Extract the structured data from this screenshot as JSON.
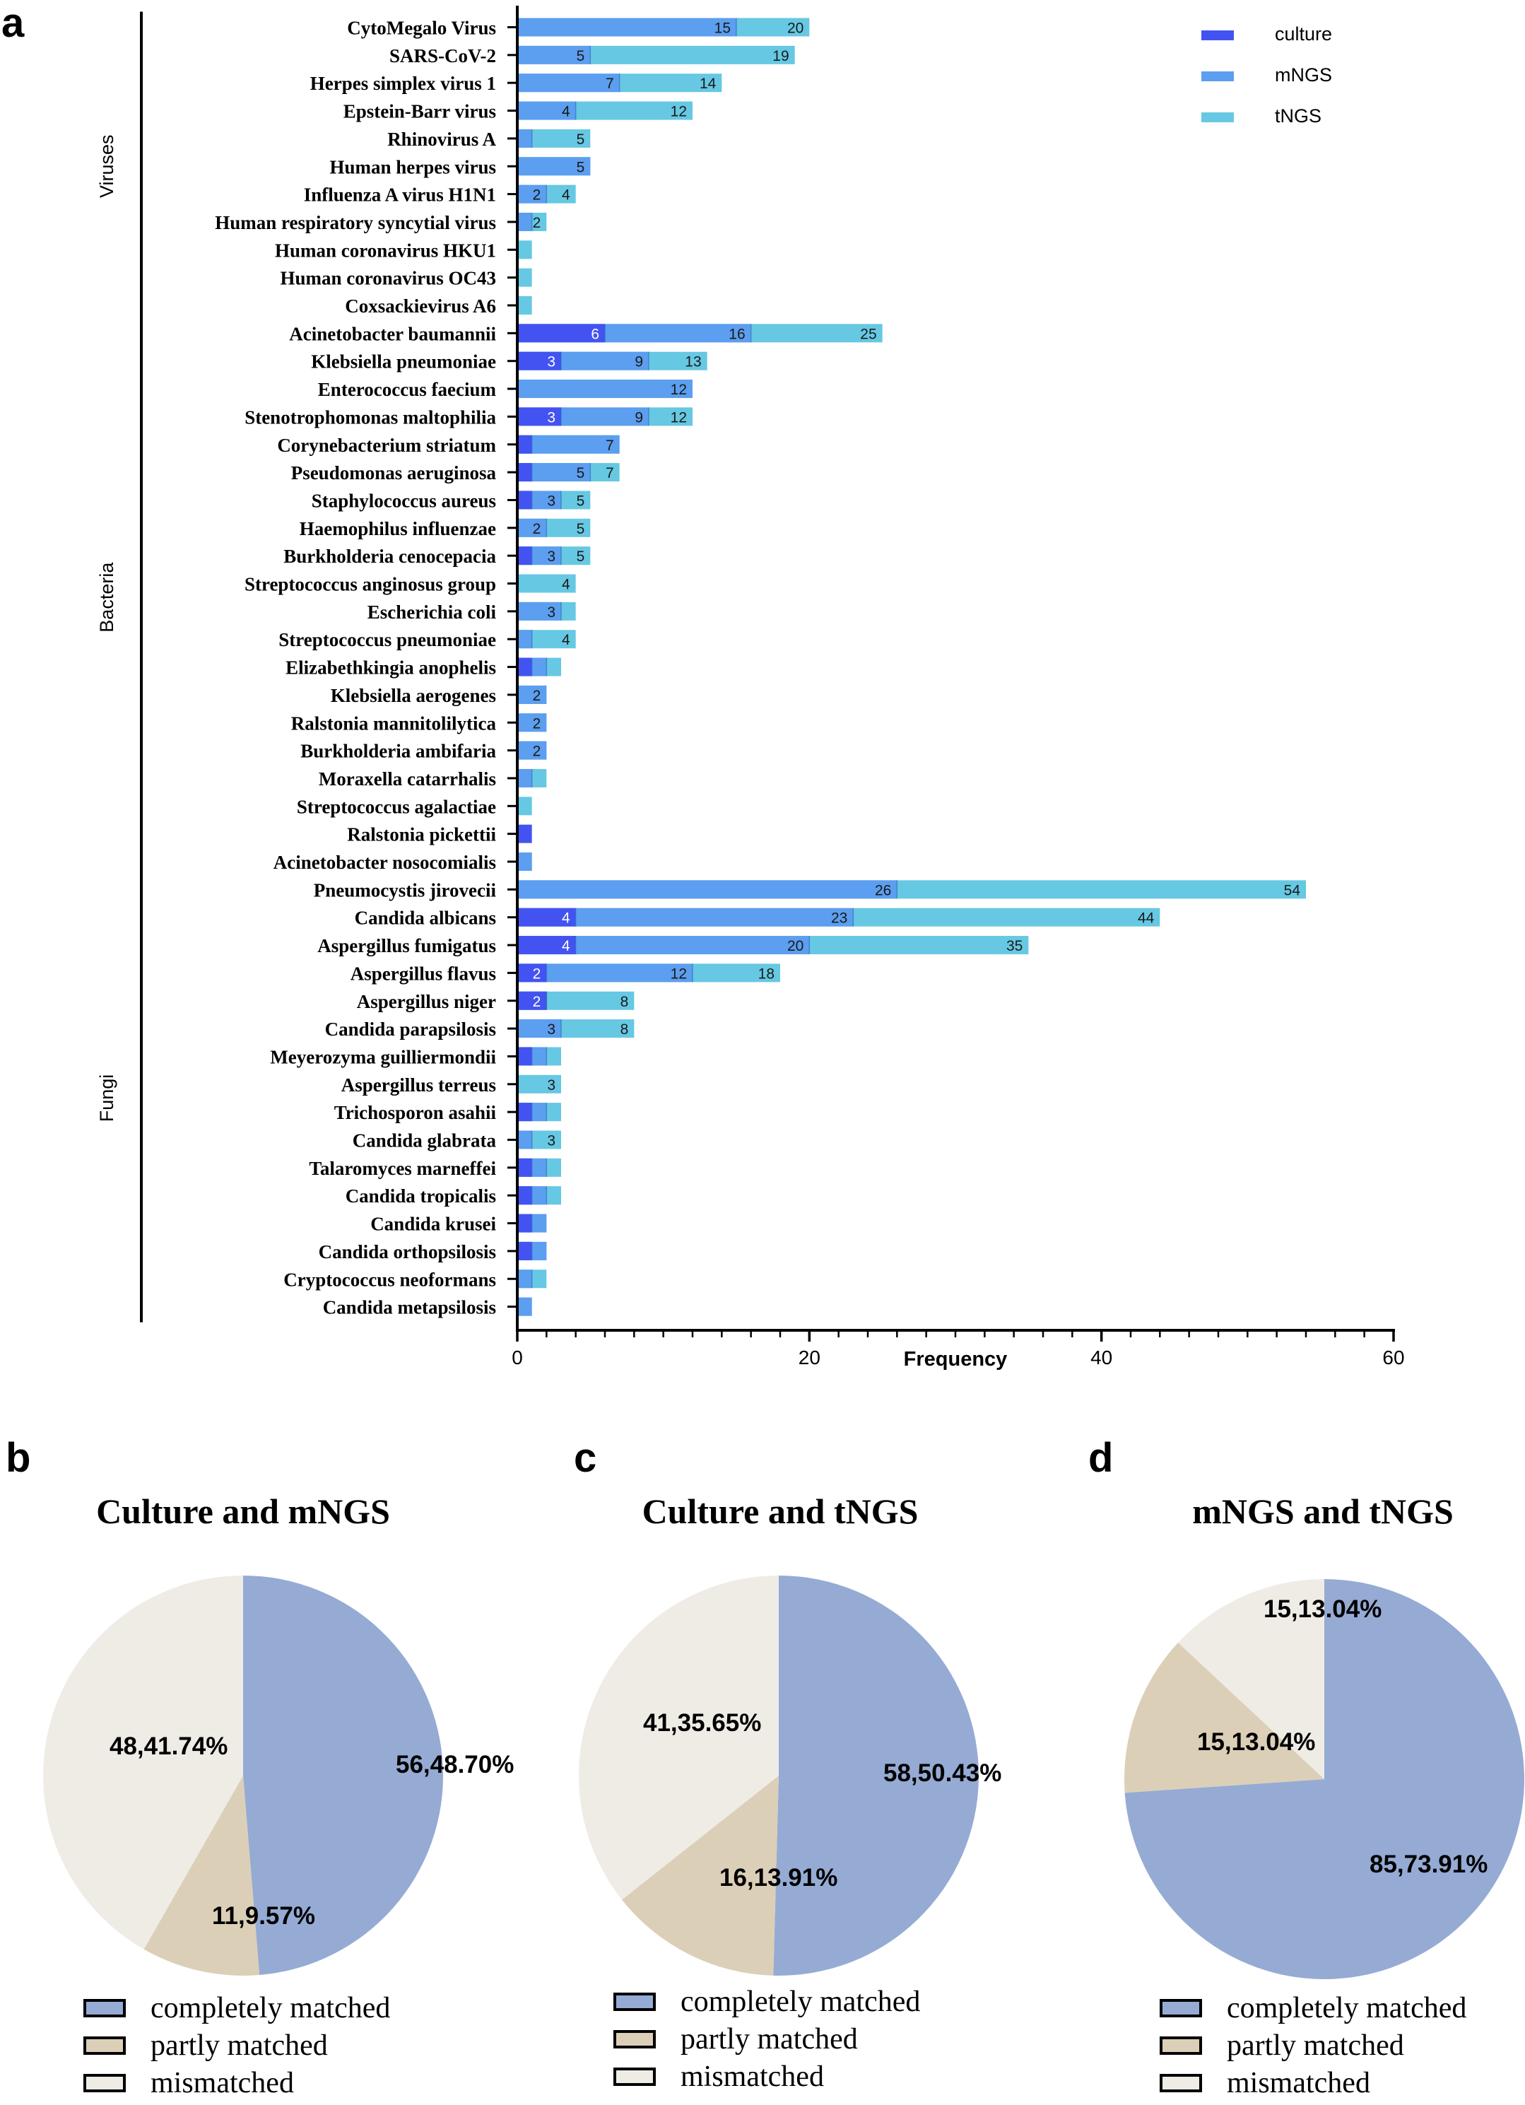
{
  "colors": {
    "culture": "#4353F2",
    "mNGS": "#5C9EEF",
    "tNGS": "#66C8E2",
    "completely": "#95ABD4",
    "partly": "#DCCFB8",
    "mismatched": "#EFECE6"
  },
  "panel_a": {
    "letter": "a",
    "xlabel": "Frequency"
  },
  "panel_b": {
    "letter": "b"
  },
  "panel_c": {
    "letter": "c"
  },
  "panel_d": {
    "letter": "d"
  },
  "chart_data": [
    {
      "type": "bar",
      "orientation": "horizontal",
      "xlabel": "Frequency",
      "xlim": [
        0,
        60
      ],
      "xticks": [
        0,
        20,
        40,
        60
      ],
      "legend": [
        "culture",
        "mNGS",
        "tNGS"
      ],
      "legend_position": "top-right",
      "groups": [
        {
          "name": "Viruses",
          "start": 0,
          "end": 10
        },
        {
          "name": "Bacteria",
          "start": 11,
          "end": 30
        },
        {
          "name": "Fungi",
          "start": 31,
          "end": 46
        }
      ],
      "rows": [
        {
          "name": "CytoMegalo Virus",
          "culture": 0,
          "mNGS": 15,
          "tNGS": 20,
          "labels": [
            "15",
            "20"
          ]
        },
        {
          "name": "SARS-CoV-2",
          "culture": 0,
          "mNGS": 5,
          "tNGS": 19,
          "labels": [
            "5",
            "19"
          ]
        },
        {
          "name": "Herpes simplex virus 1",
          "culture": 0,
          "mNGS": 7,
          "tNGS": 14,
          "labels": [
            "7",
            "14"
          ]
        },
        {
          "name": "Epstein-Barr virus",
          "culture": 0,
          "mNGS": 4,
          "tNGS": 12,
          "labels": [
            "4",
            "12"
          ]
        },
        {
          "name": "Rhinovirus A",
          "culture": 0,
          "mNGS": 1,
          "tNGS": 5,
          "labels": [
            "5"
          ]
        },
        {
          "name": "Human herpes virus",
          "culture": 0,
          "mNGS": 5,
          "tNGS": 5,
          "labels": [
            "5"
          ]
        },
        {
          "name": "Influenza A virus H1N1",
          "culture": 0,
          "mNGS": 2,
          "tNGS": 4,
          "labels": [
            "2",
            "4"
          ]
        },
        {
          "name": "Human respiratory syncytial virus",
          "culture": 0,
          "mNGS": 1,
          "tNGS": 2,
          "labels": [
            "2"
          ]
        },
        {
          "name": "Human coronavirus HKU1",
          "culture": 0,
          "mNGS": 0,
          "tNGS": 1,
          "labels": []
        },
        {
          "name": "Human coronavirus OC43",
          "culture": 0,
          "mNGS": 0,
          "tNGS": 1,
          "labels": []
        },
        {
          "name": "Coxsackievirus A6",
          "culture": 0,
          "mNGS": 0,
          "tNGS": 1,
          "labels": []
        },
        {
          "name": "Acinetobacter baumannii",
          "culture": 6,
          "mNGS": 16,
          "tNGS": 25,
          "labels": [
            "6",
            "16",
            "25"
          ]
        },
        {
          "name": "Klebsiella pneumoniae",
          "culture": 3,
          "mNGS": 9,
          "tNGS": 13,
          "labels": [
            "3",
            "9",
            "13"
          ]
        },
        {
          "name": "Enterococcus faecium",
          "culture": 0,
          "mNGS": 12,
          "tNGS": 12,
          "labels": [
            "12"
          ]
        },
        {
          "name": "Stenotrophomonas maltophilia",
          "culture": 3,
          "mNGS": 9,
          "tNGS": 12,
          "labels": [
            "3",
            "9",
            "12"
          ]
        },
        {
          "name": "Corynebacterium striatum",
          "culture": 1,
          "mNGS": 7,
          "tNGS": 7,
          "labels": [
            "7"
          ]
        },
        {
          "name": "Pseudomonas aeruginosa",
          "culture": 1,
          "mNGS": 5,
          "tNGS": 7,
          "labels": [
            "5",
            "7"
          ]
        },
        {
          "name": "Staphylococcus aureus",
          "culture": 1,
          "mNGS": 3,
          "tNGS": 5,
          "labels": [
            "3",
            "5"
          ]
        },
        {
          "name": "Haemophilus influenzae",
          "culture": 0,
          "mNGS": 2,
          "tNGS": 5,
          "labels": [
            "2",
            "5"
          ]
        },
        {
          "name": "Burkholderia cenocepacia",
          "culture": 1,
          "mNGS": 3,
          "tNGS": 5,
          "labels": [
            "3",
            "5"
          ]
        },
        {
          "name": "Streptococcus anginosus group",
          "culture": 0,
          "mNGS": 0,
          "tNGS": 4,
          "labels": [
            "4"
          ]
        },
        {
          "name": "Escherichia coli",
          "culture": 0,
          "mNGS": 3,
          "tNGS": 4,
          "labels": [
            "3"
          ]
        },
        {
          "name": "Streptococcus pneumoniae",
          "culture": 0,
          "mNGS": 1,
          "tNGS": 4,
          "labels": [
            "4"
          ]
        },
        {
          "name": "Elizabethkingia anophelis",
          "culture": 1,
          "mNGS": 2,
          "tNGS": 3,
          "labels": []
        },
        {
          "name": "Klebsiella aerogenes",
          "culture": 0,
          "mNGS": 2,
          "tNGS": 2,
          "labels": [
            "2"
          ]
        },
        {
          "name": "Ralstonia mannitolilytica",
          "culture": 0,
          "mNGS": 2,
          "tNGS": 2,
          "labels": [
            "2"
          ]
        },
        {
          "name": "Burkholderia ambifaria",
          "culture": 0,
          "mNGS": 2,
          "tNGS": 2,
          "labels": [
            "2"
          ]
        },
        {
          "name": "Moraxella catarrhalis",
          "culture": 0,
          "mNGS": 1,
          "tNGS": 2,
          "labels": []
        },
        {
          "name": "Streptococcus agalactiae",
          "culture": 0,
          "mNGS": 0,
          "tNGS": 1,
          "labels": []
        },
        {
          "name": "Ralstonia pickettii",
          "culture": 1,
          "mNGS": 0,
          "tNGS": 0,
          "labels": []
        },
        {
          "name": "Acinetobacter nosocomialis",
          "culture": 0,
          "mNGS": 1,
          "tNGS": 1,
          "labels": []
        },
        {
          "name": "Pneumocystis jirovecii",
          "culture": 0,
          "mNGS": 26,
          "tNGS": 54,
          "labels": [
            "26",
            "54"
          ]
        },
        {
          "name": "Candida albicans",
          "culture": 4,
          "mNGS": 23,
          "tNGS": 44,
          "labels": [
            "4",
            "23",
            "44"
          ]
        },
        {
          "name": "Aspergillus fumigatus",
          "culture": 4,
          "mNGS": 20,
          "tNGS": 35,
          "labels": [
            "4",
            "20",
            "35"
          ]
        },
        {
          "name": "Aspergillus flavus",
          "culture": 2,
          "mNGS": 12,
          "tNGS": 18,
          "labels": [
            "2",
            "12",
            "18"
          ]
        },
        {
          "name": "Aspergillus niger",
          "culture": 2,
          "mNGS": 2,
          "tNGS": 8,
          "labels": [
            "2",
            "8"
          ]
        },
        {
          "name": "Candida parapsilosis",
          "culture": 0,
          "mNGS": 3,
          "tNGS": 8,
          "labels": [
            "3",
            "8"
          ]
        },
        {
          "name": "Meyerozyma guilliermondii",
          "culture": 1,
          "mNGS": 2,
          "tNGS": 3,
          "labels": []
        },
        {
          "name": "Aspergillus terreus",
          "culture": 0,
          "mNGS": 0,
          "tNGS": 3,
          "labels": [
            "3"
          ]
        },
        {
          "name": "Trichosporon asahii",
          "culture": 1,
          "mNGS": 2,
          "tNGS": 3,
          "labels": []
        },
        {
          "name": "Candida glabrata",
          "culture": 0,
          "mNGS": 1,
          "tNGS": 3,
          "labels": [
            "3"
          ]
        },
        {
          "name": "Talaromyces marneffei",
          "culture": 1,
          "mNGS": 2,
          "tNGS": 3,
          "labels": []
        },
        {
          "name": "Candida tropicalis",
          "culture": 1,
          "mNGS": 2,
          "tNGS": 3,
          "labels": []
        },
        {
          "name": "Candida krusei",
          "culture": 1,
          "mNGS": 2,
          "tNGS": 2,
          "labels": []
        },
        {
          "name": "Candida orthopsilosis",
          "culture": 1,
          "mNGS": 2,
          "tNGS": 2,
          "labels": []
        },
        {
          "name": "Cryptococcus neoformans",
          "culture": 0,
          "mNGS": 1,
          "tNGS": 2,
          "labels": []
        },
        {
          "name": "Candida metapsilosis",
          "culture": 0,
          "mNGS": 1,
          "tNGS": 1,
          "labels": []
        }
      ]
    },
    {
      "type": "pie",
      "panel": "b",
      "title": "Culture and mNGS",
      "slices": [
        {
          "category": "completely matched",
          "count": 56,
          "percent": 48.7,
          "label": "56,48.70%"
        },
        {
          "category": "partly matched",
          "count": 11,
          "percent": 9.57,
          "label": "11,9.57%"
        },
        {
          "category": "mismatched",
          "count": 48,
          "percent": 41.74,
          "label": "48,41.74%"
        }
      ],
      "legend": [
        "completely matched",
        "partly matched",
        "mismatched"
      ]
    },
    {
      "type": "pie",
      "panel": "c",
      "title": "Culture and tNGS",
      "slices": [
        {
          "category": "completely matched",
          "count": 58,
          "percent": 50.43,
          "label": "58,50.43%"
        },
        {
          "category": "partly matched",
          "count": 16,
          "percent": 13.91,
          "label": "16,13.91%"
        },
        {
          "category": "mismatched",
          "count": 41,
          "percent": 35.65,
          "label": "41,35.65%"
        }
      ],
      "legend": [
        "completely matched",
        "partly matched",
        "mismatched"
      ]
    },
    {
      "type": "pie",
      "panel": "d",
      "title": "mNGS and tNGS",
      "slices": [
        {
          "category": "completely matched",
          "count": 85,
          "percent": 73.91,
          "label": "85,73.91%"
        },
        {
          "category": "partly matched",
          "count": 15,
          "percent": 13.04,
          "label": "15,13.04%"
        },
        {
          "category": "mismatched",
          "count": 15,
          "percent": 13.04,
          "label": "15,13.04%"
        }
      ],
      "legend": [
        "completely matched",
        "partly matched",
        "mismatched"
      ]
    }
  ]
}
